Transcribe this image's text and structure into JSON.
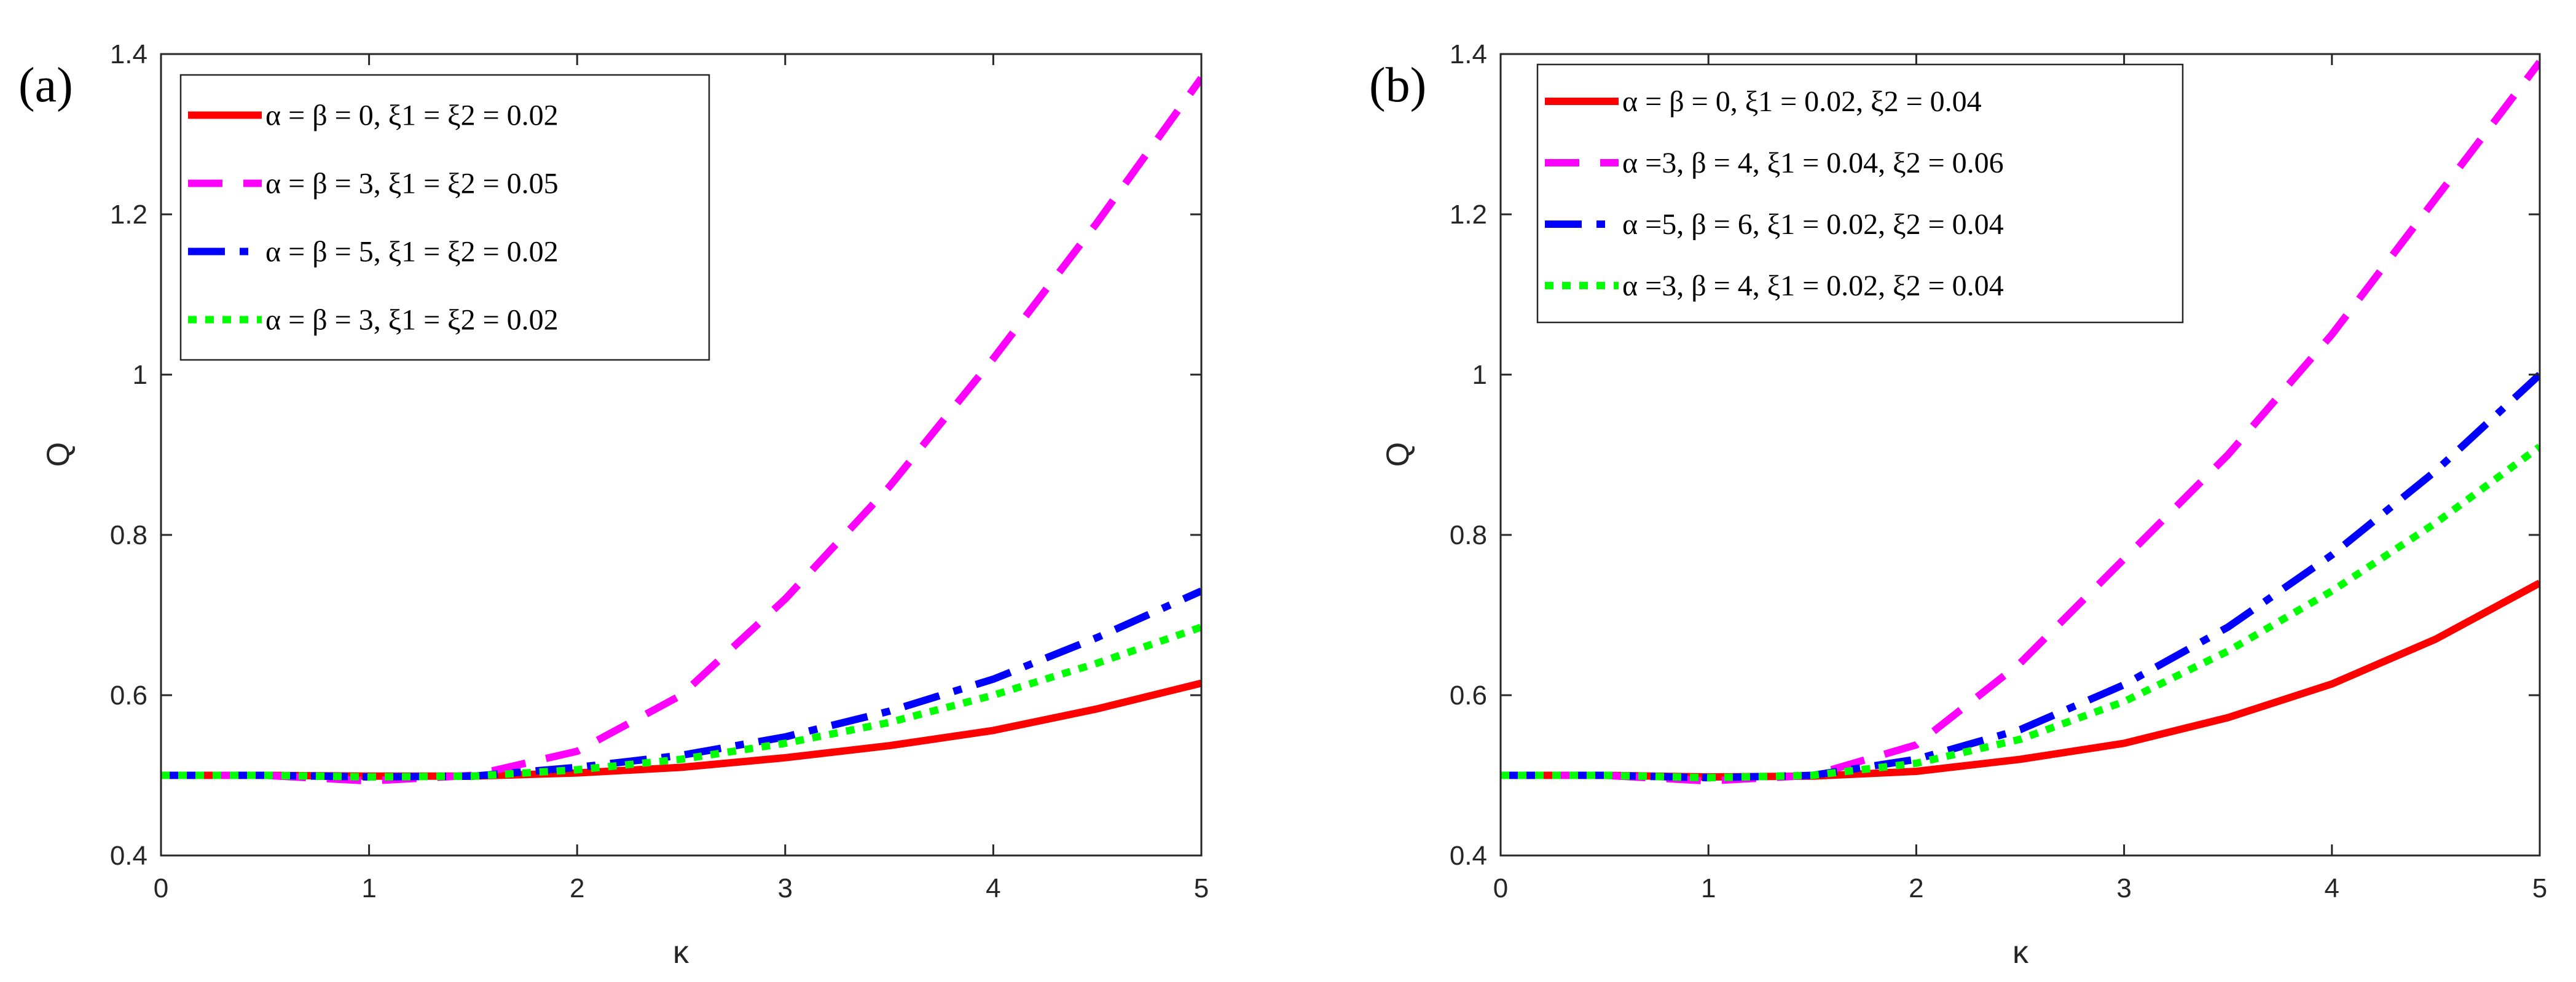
{
  "chart_data": [
    {
      "type": "line",
      "panel_label": "(a)",
      "xlabel": "κ",
      "ylabel": "Q",
      "xlim": [
        0,
        5
      ],
      "ylim": [
        0.4,
        1.4
      ],
      "xticks": [
        "0",
        "1",
        "2",
        "3",
        "4",
        "5"
      ],
      "yticks": [
        "0.4",
        "0.6",
        "0.8",
        "1",
        "1.2",
        "1.4"
      ],
      "grid": false,
      "legend_position": "top-left",
      "x": [
        0,
        0.5,
        1,
        1.5,
        2,
        2.5,
        3,
        3.5,
        4,
        4.5,
        5
      ],
      "series": [
        {
          "name": "α = β = 0, ξ1 = ξ2 = 0.02",
          "color": "#ff0000",
          "style": "solid",
          "values": [
            0.5,
            0.5,
            0.499,
            0.499,
            0.503,
            0.51,
            0.522,
            0.537,
            0.556,
            0.583,
            0.615
          ]
        },
        {
          "name": "α = β = 3, ξ1 = ξ2 = 0.05",
          "color": "#ff00ff",
          "style": "dashed",
          "values": [
            0.5,
            0.5,
            0.493,
            0.5,
            0.53,
            0.6,
            0.72,
            0.86,
            1.02,
            1.19,
            1.37
          ]
        },
        {
          "name": "α = β = 5, ξ1 = ξ2 = 0.02",
          "color": "#0000ff",
          "style": "dashdot",
          "values": [
            0.5,
            0.5,
            0.498,
            0.499,
            0.51,
            0.525,
            0.548,
            0.58,
            0.62,
            0.672,
            0.73
          ]
        },
        {
          "name": "α = β = 3, ξ1 = ξ2 = 0.02",
          "color": "#00ff00",
          "style": "dotted",
          "values": [
            0.5,
            0.5,
            0.498,
            0.499,
            0.507,
            0.52,
            0.54,
            0.566,
            0.6,
            0.64,
            0.685
          ]
        }
      ]
    },
    {
      "type": "line",
      "panel_label": "(b)",
      "xlabel": "κ",
      "ylabel": "Q",
      "xlim": [
        0,
        5
      ],
      "ylim": [
        0.4,
        1.4
      ],
      "xticks": [
        "0",
        "1",
        "2",
        "3",
        "4",
        "5"
      ],
      "yticks": [
        "0.4",
        "0.6",
        "0.8",
        "1",
        "1.2",
        "1.4"
      ],
      "grid": false,
      "legend_position": "top-left",
      "x": [
        0,
        0.5,
        1,
        1.5,
        2,
        2.5,
        3,
        3.5,
        4,
        4.5,
        5
      ],
      "series": [
        {
          "name": "α = β = 0, ξ1 = 0.02, ξ2 = 0.04",
          "color": "#ff0000",
          "style": "solid",
          "values": [
            0.5,
            0.5,
            0.498,
            0.499,
            0.505,
            0.52,
            0.54,
            0.572,
            0.614,
            0.67,
            0.74
          ]
        },
        {
          "name": "α =3, β = 4, ξ1 = 0.04, ξ2 = 0.06",
          "color": "#ff00ff",
          "style": "dashed",
          "values": [
            0.5,
            0.5,
            0.493,
            0.5,
            0.538,
            0.64,
            0.77,
            0.9,
            1.05,
            1.22,
            1.39
          ]
        },
        {
          "name": "α =5, β = 6, ξ1 = 0.02, ξ2 = 0.04",
          "color": "#0000ff",
          "style": "dashdot",
          "values": [
            0.5,
            0.5,
            0.497,
            0.5,
            0.52,
            0.557,
            0.613,
            0.685,
            0.775,
            0.88,
            1.0
          ]
        },
        {
          "name": "α =3, β = 4, ξ1 = 0.02, ξ2 = 0.04",
          "color": "#00ff00",
          "style": "dotted",
          "values": [
            0.5,
            0.5,
            0.497,
            0.5,
            0.515,
            0.545,
            0.592,
            0.655,
            0.73,
            0.815,
            0.91
          ]
        }
      ]
    }
  ]
}
